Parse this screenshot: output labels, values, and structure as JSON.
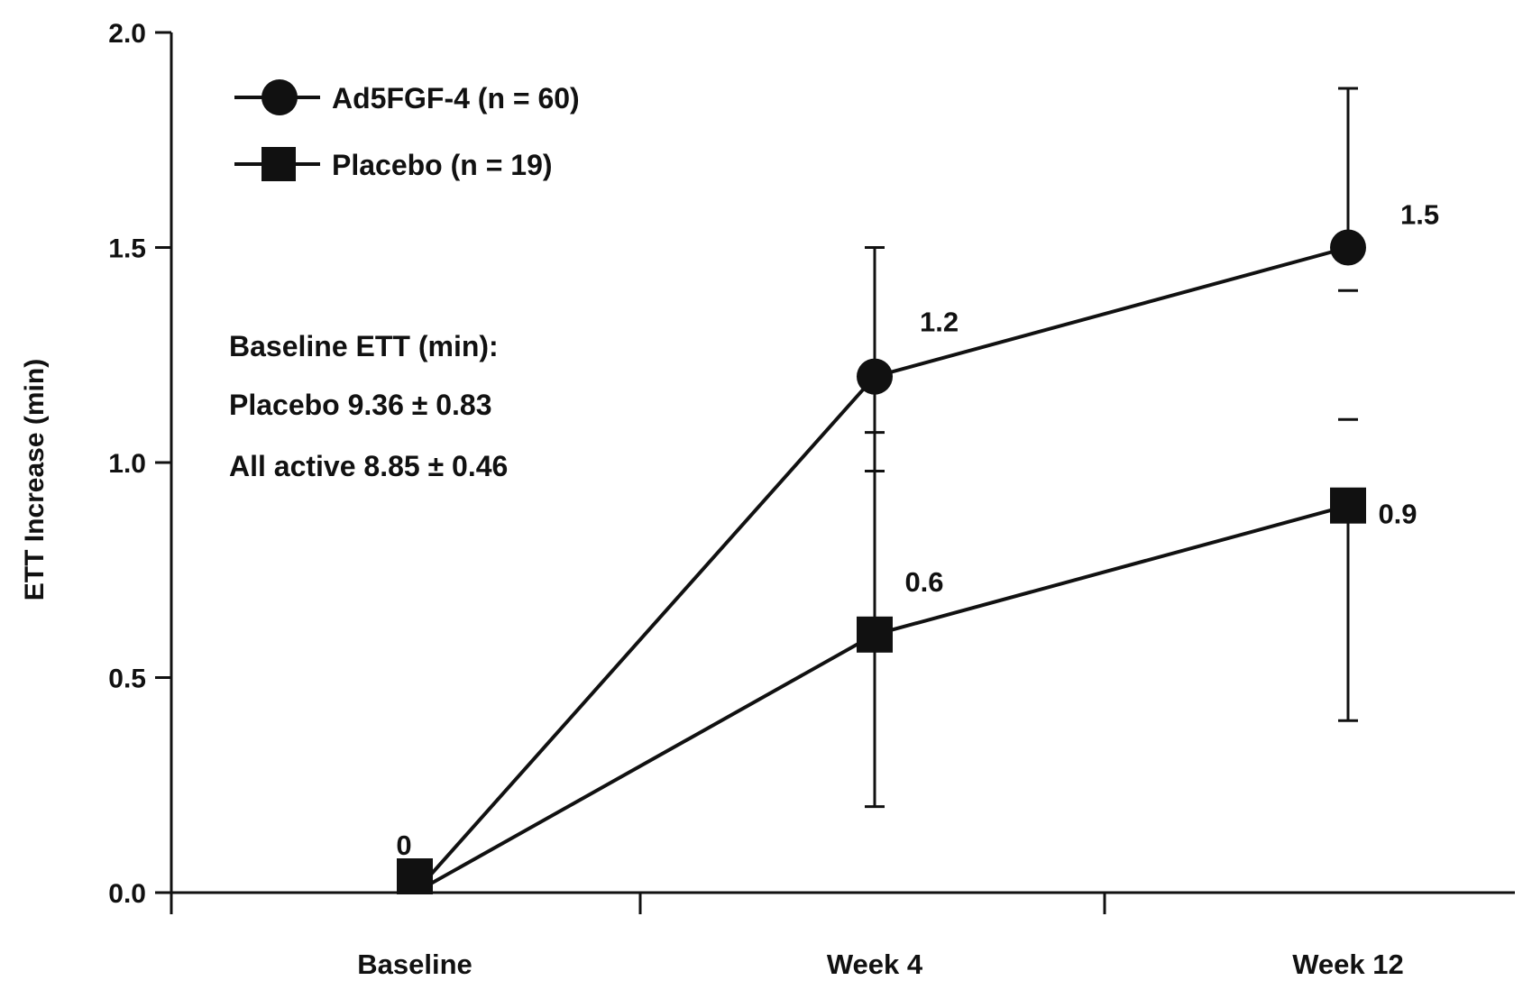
{
  "chart_data": {
    "type": "line",
    "title": "",
    "xlabel": "",
    "ylabel": "ETT Increase (min)",
    "categories": [
      "Baseline",
      "Week 4",
      "Week 12"
    ],
    "ylim": [
      0.0,
      2.0
    ],
    "yticks": [
      "0.0",
      "0.5",
      "1.0",
      "1.5",
      "2.0"
    ],
    "grid": false,
    "legend_position": "top-left",
    "series": [
      {
        "name": "Ad5FGF-4 (n = 60)",
        "marker": "circle",
        "values": [
          0.0,
          1.2,
          1.5
        ],
        "error_low": [
          null,
          0.2,
          null
        ],
        "error_high": [
          null,
          1.5,
          1.87
        ],
        "error_ticks": [
          [],
          [
            0.98,
            1.07
          ],
          [
            1.1,
            1.4
          ]
        ],
        "labels": [
          "",
          "1.2",
          "1.5"
        ]
      },
      {
        "name": "Placebo (n = 19)",
        "marker": "square",
        "values": [
          0.0,
          0.6,
          0.9
        ],
        "error_low": [
          null,
          null,
          0.4
        ],
        "error_high": [
          null,
          null,
          null
        ],
        "labels": [
          "0",
          "0.6",
          "0.9"
        ]
      }
    ],
    "annotations": [
      "Baseline ETT (min):",
      "Placebo 9.36 ± 0.83",
      "All active 8.85 ± 0.46"
    ],
    "color": "#111111"
  }
}
